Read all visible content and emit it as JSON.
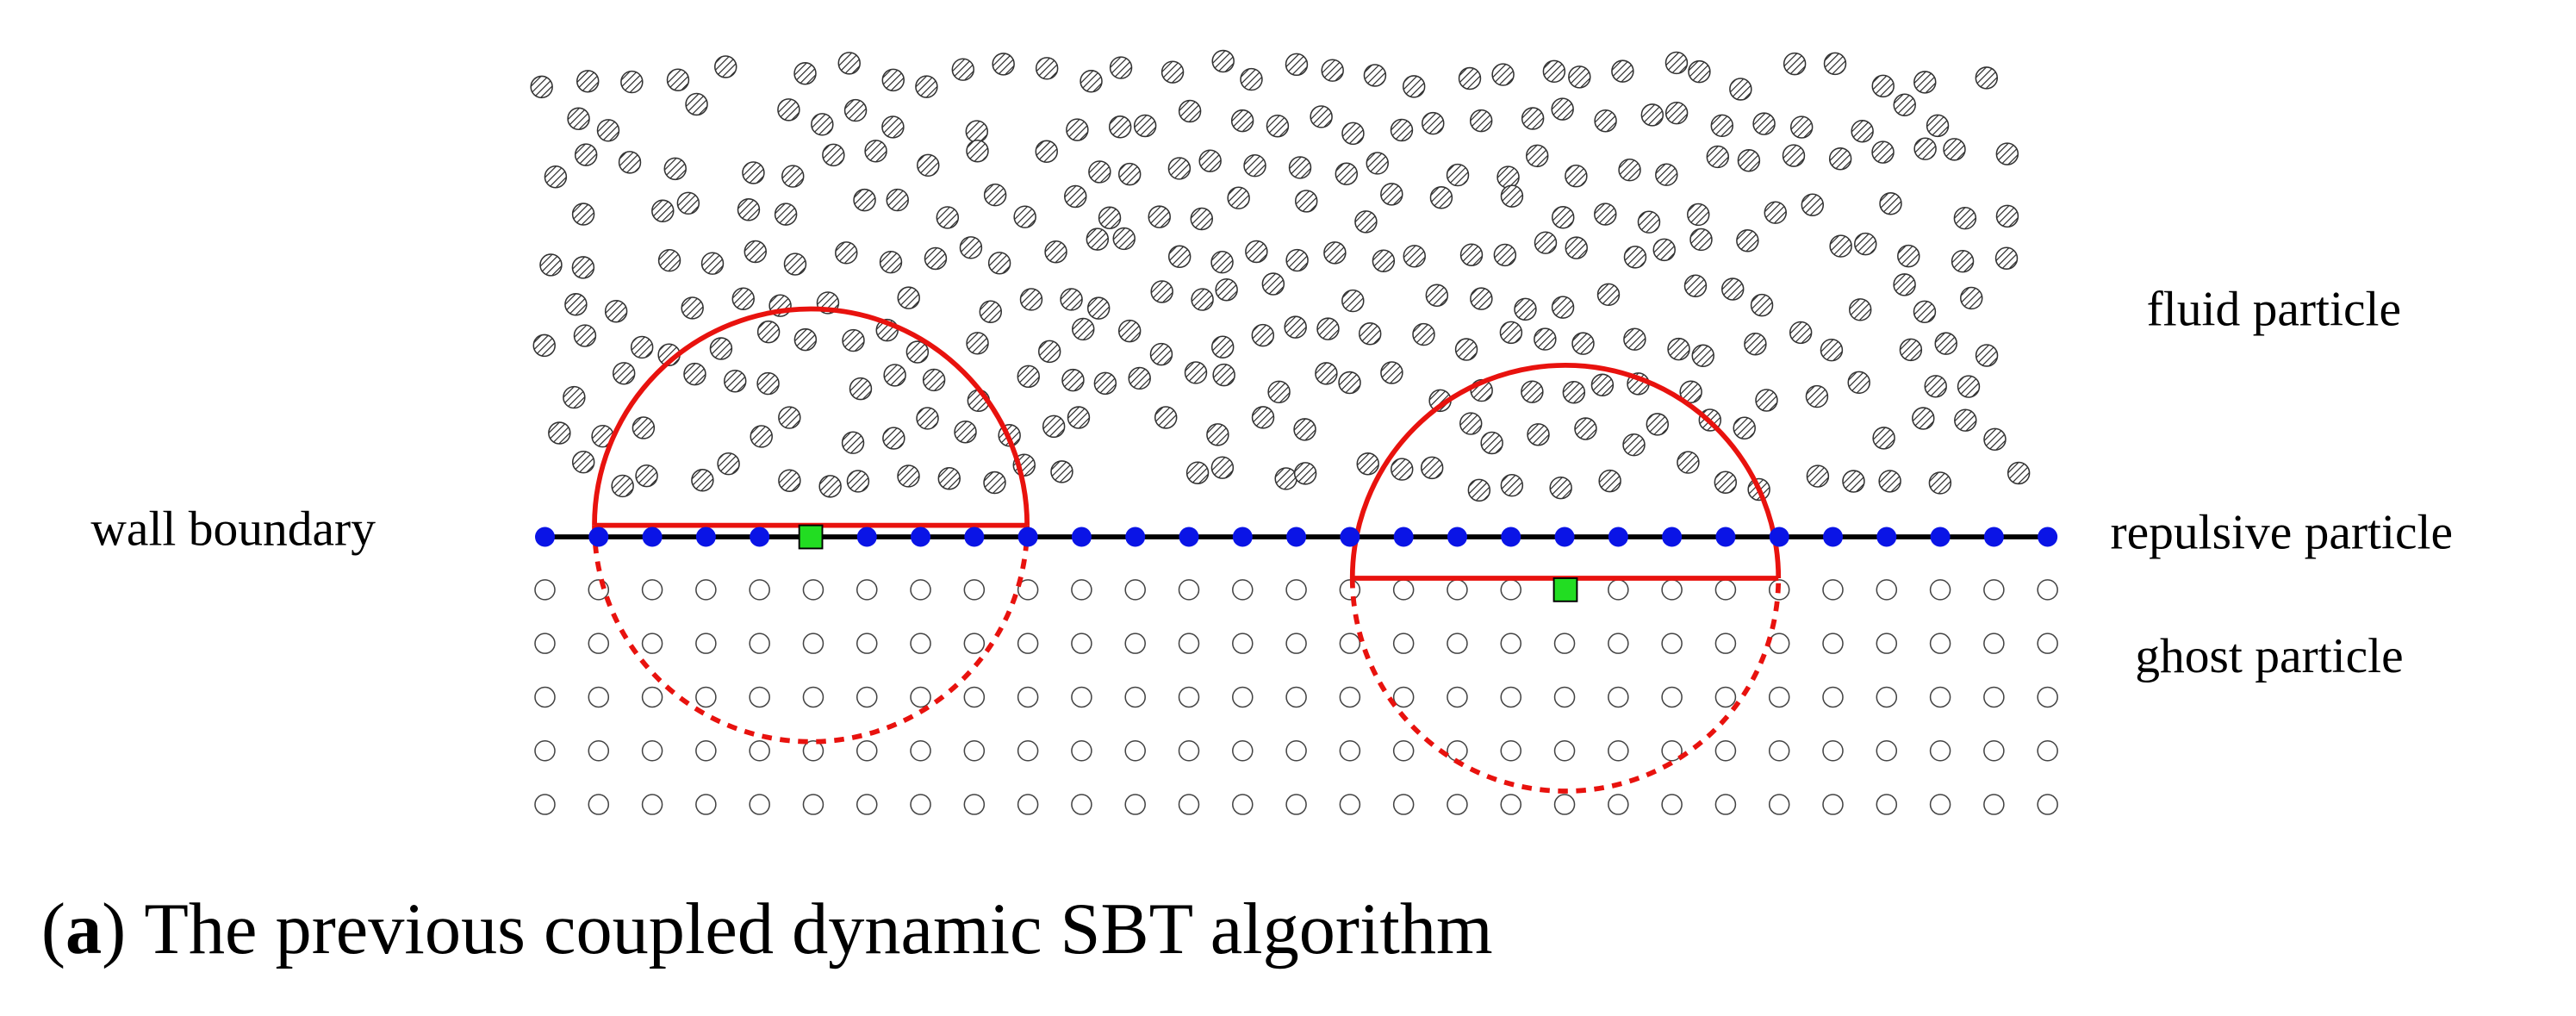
{
  "labels": {
    "wall": "wall boundary",
    "fluid": "fluid particle",
    "repulsive": "repulsive particle",
    "ghost": "ghost particle"
  },
  "caption": {
    "open": "(",
    "label": "a",
    "close": ")",
    "text": "The previous coupled dynamic SBT algorithm"
  }
}
